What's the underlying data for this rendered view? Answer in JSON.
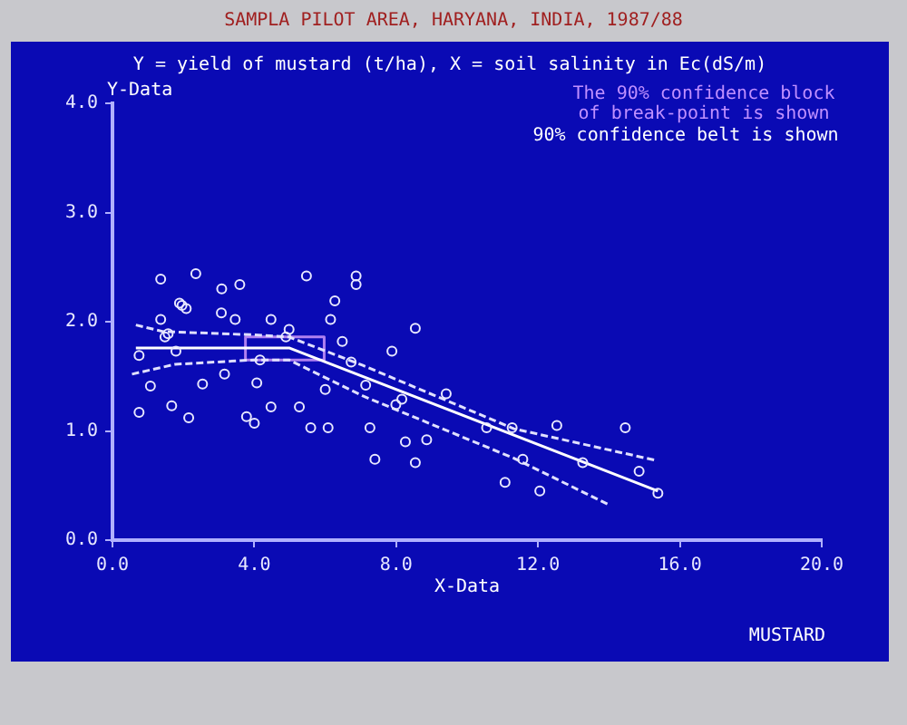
{
  "chart_data": {
    "type": "scatter",
    "title": "SAMPLA PILOT AREA, HARYANA, INDIA, 1987/88",
    "subtitle": "Y = yield of mustard (t/ha), X = soil salinity in Ec(dS/m)",
    "xlabel": "X-Data",
    "ylabel": "Y-Data",
    "annotations": [
      "The 90% confidence block\nof break-point is shown",
      "90% confidence belt is shown",
      "MUSTARD"
    ],
    "xlim": [
      0,
      20
    ],
    "ylim": [
      0,
      4
    ],
    "xticks": [
      {
        "value": 0,
        "label": "0.0"
      },
      {
        "value": 4,
        "label": "4.0"
      },
      {
        "value": 8,
        "label": "8.0"
      },
      {
        "value": 12,
        "label": "12.0"
      },
      {
        "value": 16,
        "label": "16.0"
      },
      {
        "value": 20,
        "label": "20.0"
      }
    ],
    "yticks": [
      {
        "value": 0,
        "label": "0.0"
      },
      {
        "value": 1,
        "label": "1.0"
      },
      {
        "value": 2,
        "label": "2.0"
      },
      {
        "value": 3,
        "label": "3.0"
      },
      {
        "value": 4,
        "label": "4.0"
      }
    ],
    "grid": false,
    "legend": false,
    "marker": "circle",
    "series": [
      {
        "color": "#e8e8ff",
        "x": [
          0.75,
          1.36,
          2.35,
          1.36,
          1.48,
          1.57,
          1.89,
          1.96,
          2.08,
          1.79,
          1.07,
          0.75,
          1.67,
          2.15,
          2.54,
          3.08,
          3.59,
          3.07,
          3.46,
          3.16,
          4.47,
          4.98,
          4.89,
          4.16,
          4.07,
          3.78,
          4.0,
          4.47,
          5.47,
          6.15,
          6.27,
          6.48,
          6.73,
          6.87,
          6.87,
          6.0,
          5.27,
          5.59,
          6.08,
          7.14,
          7.26,
          7.4,
          7.88,
          7.99,
          8.16,
          8.26,
          8.54,
          8.54,
          8.86,
          9.41,
          10.55,
          11.27,
          11.07,
          11.57,
          12.05,
          12.53,
          13.26,
          14.46,
          14.85,
          15.38
        ],
        "values": [
          1.69,
          2.39,
          2.44,
          2.02,
          1.86,
          1.89,
          2.17,
          2.15,
          2.12,
          1.73,
          1.41,
          1.17,
          1.23,
          1.12,
          1.43,
          2.3,
          2.34,
          2.08,
          2.02,
          1.52,
          2.02,
          1.93,
          1.86,
          1.65,
          1.44,
          1.13,
          1.07,
          1.22,
          2.42,
          2.02,
          2.19,
          1.82,
          1.63,
          2.42,
          2.34,
          1.38,
          1.22,
          1.03,
          1.03,
          1.42,
          1.03,
          0.74,
          1.73,
          1.24,
          1.29,
          0.9,
          1.94,
          0.71,
          0.92,
          1.34,
          1.03,
          1.03,
          0.53,
          0.74,
          0.45,
          1.05,
          0.71,
          1.03,
          0.63,
          0.43
        ]
      },
      {
        "type": "line",
        "color": "#ffffff",
        "line_style": "solid",
        "marker": "none",
        "x": [
          0.66,
          4.98,
          15.38
        ],
        "values": [
          1.76,
          1.76,
          0.45
        ]
      },
      {
        "type": "line",
        "color": "#e0e0ff",
        "line_style": "dashed",
        "marker": "none",
        "x": [
          0.66,
          1.43,
          3.99,
          4.98,
          7.06,
          11.32,
          15.33
        ],
        "values": [
          1.97,
          1.91,
          1.88,
          1.86,
          1.6,
          1.02,
          0.73
        ]
      },
      {
        "type": "line",
        "color": "#e0e0ff",
        "line_style": "dashed",
        "marker": "none",
        "x": [
          0.55,
          1.77,
          3.99,
          4.98,
          7.06,
          11.32,
          13.96
        ],
        "values": [
          1.52,
          1.61,
          1.65,
          1.65,
          1.32,
          0.75,
          0.33
        ]
      },
      {
        "type": "line",
        "color": "#b080f0",
        "line_style": "solid",
        "marker": "none",
        "x": [
          3.75,
          5.97,
          5.97
        ],
        "values": [
          1.86,
          1.86,
          1.65
        ]
      },
      {
        "type": "line",
        "color": "#b080f0",
        "line_style": "solid",
        "marker": "none",
        "x": [
          3.75,
          3.75,
          5.97
        ],
        "values": [
          1.86,
          1.65,
          1.65
        ]
      }
    ]
  }
}
